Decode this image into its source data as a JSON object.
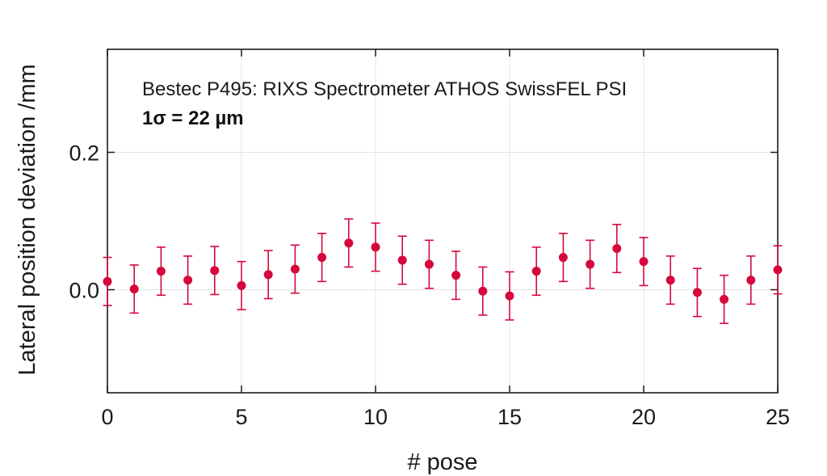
{
  "chart_data": {
    "type": "scatter",
    "title": "",
    "xlabel": "# pose",
    "ylabel": "Lateral position deviation /mm",
    "xlim": [
      0,
      25
    ],
    "ylim": [
      -0.15,
      0.35
    ],
    "xticks": [
      0,
      5,
      10,
      15,
      20,
      25
    ],
    "xtick_labels": [
      "0",
      "5",
      "10",
      "15",
      "20",
      "25"
    ],
    "yticks": [
      0.0,
      0.2
    ],
    "ytick_labels": [
      "0.0",
      "0.2"
    ],
    "grid": true,
    "annotations": [
      "Bestec P495: RIXS Spectrometer ATHOS SwissFEL PSI",
      "1σ = 22 µm"
    ],
    "color": "#d6083b",
    "series": [
      {
        "name": "lateral deviation",
        "x": [
          0,
          1,
          2,
          3,
          4,
          5,
          6,
          7,
          8,
          9,
          10,
          11,
          12,
          13,
          14,
          15,
          16,
          17,
          18,
          19,
          20,
          21,
          22,
          23,
          24,
          25
        ],
        "y": [
          0.012,
          0.001,
          0.027,
          0.014,
          0.028,
          0.006,
          0.022,
          0.03,
          0.047,
          0.068,
          0.062,
          0.043,
          0.037,
          0.021,
          -0.002,
          -0.009,
          0.027,
          0.047,
          0.037,
          0.06,
          0.041,
          0.014,
          -0.004,
          -0.014,
          0.014,
          0.029
        ],
        "error": 0.035
      }
    ]
  }
}
